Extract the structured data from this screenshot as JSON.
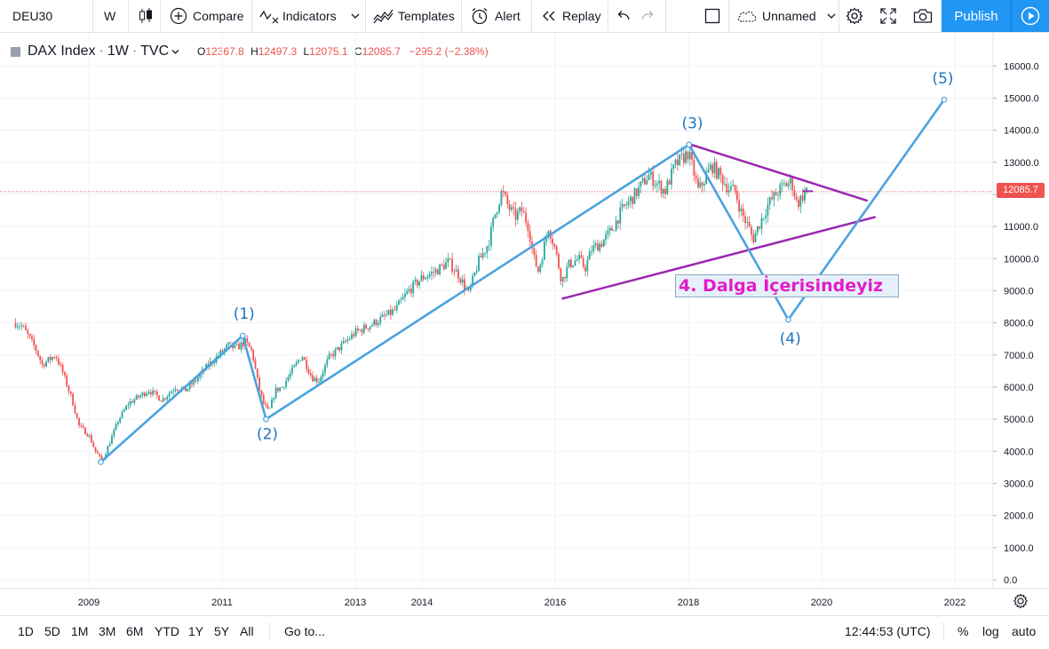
{
  "toolbar": {
    "symbol": "DEU30",
    "interval": "W",
    "compare_label": "Compare",
    "indicators_label": "Indicators",
    "templates_label": "Templates",
    "alert_label": "Alert",
    "replay_label": "Replay",
    "layout_name": "Unnamed",
    "publish_label": "Publish"
  },
  "legend": {
    "title": "DAX Index",
    "interval": "1W",
    "source": "TVC",
    "open_label": "O",
    "open": "12367.8",
    "high_label": "H",
    "high": "12497.3",
    "low_label": "L",
    "low": "12075.1",
    "close_label": "C",
    "close": "12085.7",
    "change": "−295.2 (−2.38%)"
  },
  "annotation": "4. Dalga İçerisindeyiz",
  "last_price": "12085.7",
  "chart_data": {
    "type": "line",
    "chart_style": "candlestick",
    "y_scale": "linear",
    "ylim": [
      -200,
      16500
    ],
    "y_ticks": [
      "16000.0",
      "15000.0",
      "14000.0",
      "13000.0",
      "12000.0",
      "11000.0",
      "10000.0",
      "9000.0",
      "8000.0",
      "7000.0",
      "6000.0",
      "5000.0",
      "4000.0",
      "3000.0",
      "2000.0",
      "1000.0",
      "0.0"
    ],
    "x_ticks": [
      "2009",
      "2011",
      "2013",
      "2014",
      "2016",
      "2018",
      "2020",
      "2022"
    ],
    "x_tick_years": [
      2009,
      2011,
      2013,
      2014,
      2016,
      2018,
      2020,
      2022
    ],
    "grid": true,
    "price_series": [
      [
        2007.9,
        8000
      ],
      [
        2008.0,
        7900
      ],
      [
        2008.2,
        7200
      ],
      [
        2008.3,
        6700
      ],
      [
        2008.5,
        7000
      ],
      [
        2008.6,
        6500
      ],
      [
        2008.75,
        5600
      ],
      [
        2008.85,
        4800
      ],
      [
        2009.0,
        4500
      ],
      [
        2009.1,
        4000
      ],
      [
        2009.2,
        3700
      ],
      [
        2009.3,
        4200
      ],
      [
        2009.45,
        5000
      ],
      [
        2009.6,
        5500
      ],
      [
        2009.75,
        5700
      ],
      [
        2009.9,
        5900
      ],
      [
        2010.1,
        5600
      ],
      [
        2010.3,
        6000
      ],
      [
        2010.45,
        5900
      ],
      [
        2010.6,
        6200
      ],
      [
        2010.8,
        6700
      ],
      [
        2011.0,
        7100
      ],
      [
        2011.1,
        7300
      ],
      [
        2011.2,
        7200
      ],
      [
        2011.35,
        7400
      ],
      [
        2011.45,
        7100
      ],
      [
        2011.55,
        6000
      ],
      [
        2011.62,
        5500
      ],
      [
        2011.7,
        5200
      ],
      [
        2011.8,
        5900
      ],
      [
        2011.9,
        6000
      ],
      [
        2012.05,
        6500
      ],
      [
        2012.2,
        7000
      ],
      [
        2012.35,
        6300
      ],
      [
        2012.45,
        6200
      ],
      [
        2012.6,
        6900
      ],
      [
        2012.8,
        7300
      ],
      [
        2013.0,
        7700
      ],
      [
        2013.2,
        7900
      ],
      [
        2013.45,
        8200
      ],
      [
        2013.6,
        8400
      ],
      [
        2013.8,
        9000
      ],
      [
        2014.0,
        9400
      ],
      [
        2014.2,
        9600
      ],
      [
        2014.4,
        9900
      ],
      [
        2014.55,
        9500
      ],
      [
        2014.7,
        8900
      ],
      [
        2014.85,
        9900
      ],
      [
        2015.0,
        10500
      ],
      [
        2015.1,
        11400
      ],
      [
        2015.2,
        12100
      ],
      [
        2015.3,
        11600
      ],
      [
        2015.4,
        11300
      ],
      [
        2015.5,
        11500
      ],
      [
        2015.6,
        11000
      ],
      [
        2015.68,
        10000
      ],
      [
        2015.75,
        9600
      ],
      [
        2015.9,
        11000
      ],
      [
        2016.0,
        10300
      ],
      [
        2016.1,
        9300
      ],
      [
        2016.2,
        9800
      ],
      [
        2016.35,
        10000
      ],
      [
        2016.45,
        9700
      ],
      [
        2016.55,
        10300
      ],
      [
        2016.7,
        10500
      ],
      [
        2016.85,
        10900
      ],
      [
        2017.0,
        11500
      ],
      [
        2017.2,
        12000
      ],
      [
        2017.4,
        12600
      ],
      [
        2017.55,
        12300
      ],
      [
        2017.65,
        12100
      ],
      [
        2017.8,
        12900
      ],
      [
        2017.9,
        13100
      ],
      [
        2018.0,
        13300
      ],
      [
        2018.08,
        12700
      ],
      [
        2018.15,
        12100
      ],
      [
        2018.25,
        12500
      ],
      [
        2018.35,
        12900
      ],
      [
        2018.5,
        12500
      ],
      [
        2018.6,
        12200
      ],
      [
        2018.7,
        12100
      ],
      [
        2018.8,
        11400
      ],
      [
        2018.9,
        11000
      ],
      [
        2018.97,
        10600
      ],
      [
        2019.05,
        11000
      ],
      [
        2019.2,
        11700
      ],
      [
        2019.35,
        12100
      ],
      [
        2019.45,
        12300
      ],
      [
        2019.55,
        12400
      ],
      [
        2019.63,
        11700
      ],
      [
        2019.7,
        11900
      ],
      [
        2019.78,
        12200
      ]
    ],
    "wave_lines": [
      {
        "points": [
          [
            2009.18,
            3666
          ],
          [
            2011.31,
            7600
          ]
        ]
      },
      {
        "points": [
          [
            2011.31,
            7600
          ],
          [
            2011.66,
            5000
          ]
        ]
      },
      {
        "points": [
          [
            2011.66,
            5000
          ],
          [
            2018.01,
            13550
          ]
        ]
      },
      {
        "points": [
          [
            2018.01,
            13550
          ],
          [
            2019.5,
            8100
          ]
        ]
      },
      {
        "points": [
          [
            2019.5,
            8100
          ],
          [
            2021.84,
            14950
          ]
        ]
      }
    ],
    "wave_labels": [
      {
        "text": "(1)",
        "x": 2011.33,
        "y": 8130
      },
      {
        "text": "(2)",
        "x": 2011.68,
        "y": 4380
      },
      {
        "text": "(3)",
        "x": 2018.06,
        "y": 14060
      },
      {
        "text": "(4)",
        "x": 2019.53,
        "y": 7360
      },
      {
        "text": "(5)",
        "x": 2021.82,
        "y": 15450
      }
    ],
    "triangle_lines": [
      {
        "points": [
          [
            2018.04,
            13550
          ],
          [
            2020.69,
            11800
          ]
        ]
      },
      {
        "points": [
          [
            2016.1,
            8750
          ],
          [
            2020.81,
            11300
          ]
        ]
      }
    ],
    "last_price_value": 12085.7
  },
  "bottom": {
    "ranges": [
      "1D",
      "5D",
      "1M",
      "3M",
      "6M",
      "YTD",
      "1Y",
      "5Y",
      "All"
    ],
    "goto_label": "Go to...",
    "time": "12:44:53 (UTC)",
    "percent_label": "%",
    "log_label": "log",
    "auto_label": "auto"
  },
  "colors": {
    "wave_line": "#4aa3df",
    "triangle": "#9c27b0",
    "candle_up": "#26a69a",
    "candle_down": "#ef5350",
    "publish": "#2196f3"
  }
}
